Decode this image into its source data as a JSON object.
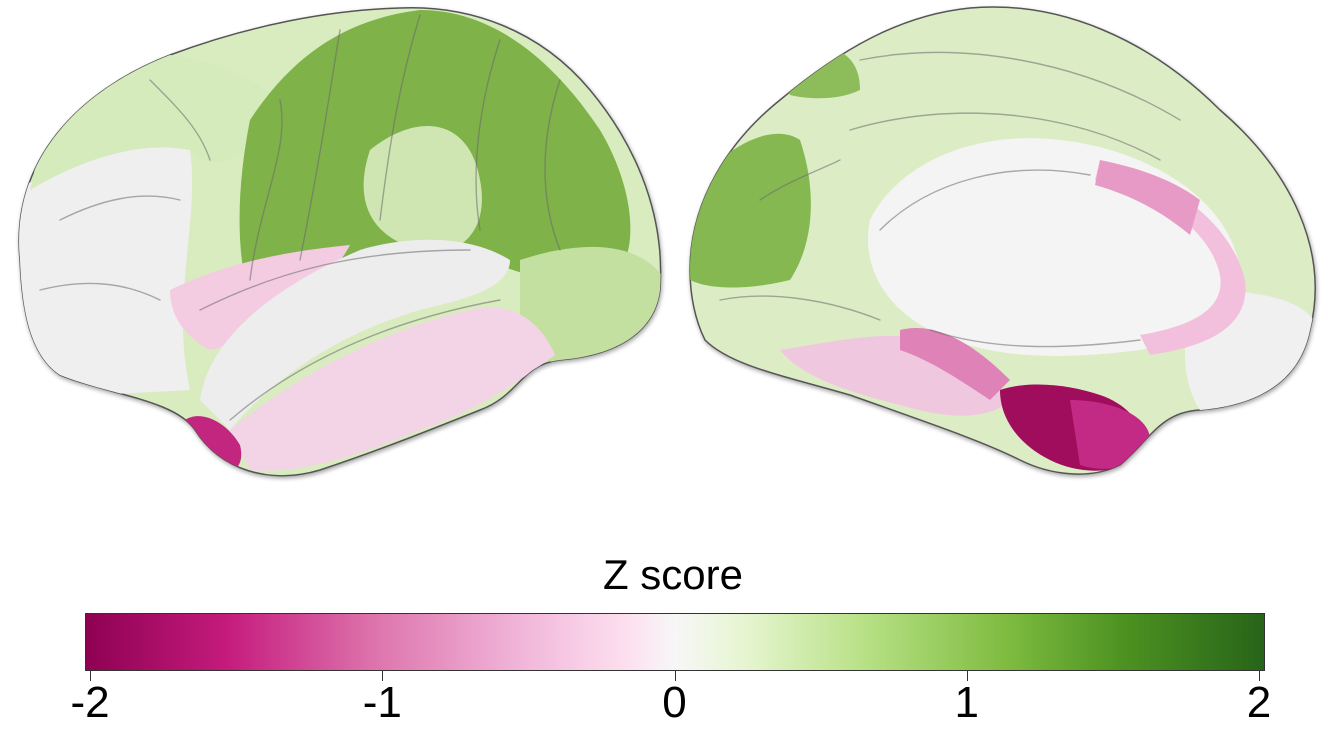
{
  "figure": {
    "views": [
      {
        "name": "lateral-view-left-hemisphere"
      },
      {
        "name": "medial-view-right-hemisphere"
      }
    ]
  },
  "colorbar": {
    "title": "Z score",
    "min": -2,
    "max": 2,
    "ticks": [
      "-2",
      "-1",
      "0",
      "1",
      "2"
    ],
    "tick_values": [
      -2,
      -1,
      0,
      1,
      2
    ],
    "colors": {
      "strong_negative": "#8e0152",
      "negative": "#c51b7d",
      "mild_negative": "#de77ae",
      "light_negative": "#f1b6da",
      "neutral": "#f7f7f7",
      "light_positive": "#e6f5d0",
      "mild_positive": "#b8e186",
      "positive": "#7fbc41",
      "strong_positive": "#276419"
    }
  }
}
